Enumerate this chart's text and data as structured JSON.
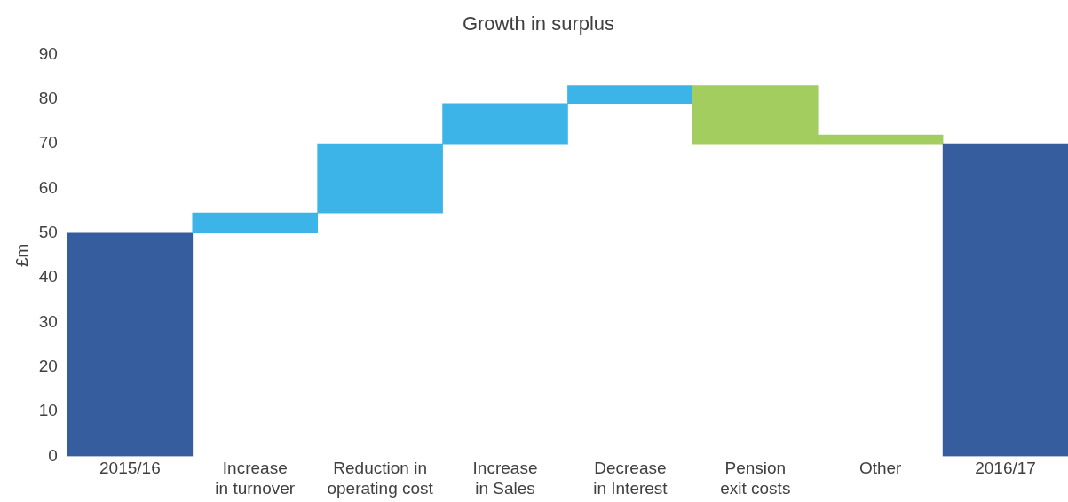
{
  "chart_data": {
    "type": "bar",
    "title": "Growth in surplus",
    "ylabel": "£m",
    "categories": [
      "2015/16",
      "Increase in turnover",
      "Reduction in operating cost",
      "Increase in Sales",
      "Decrease in Interest",
      "Pension exit costs",
      "Other",
      "2016/17"
    ],
    "base": [
      0,
      50,
      54.5,
      70,
      79,
      83,
      70,
      0
    ],
    "values": [
      50,
      4.5,
      15.5,
      9,
      4,
      -13,
      2,
      70
    ],
    "colors": [
      "#365e9f",
      "#3cb4e7",
      "#3cb4e7",
      "#3cb4e7",
      "#3cb4e7",
      "#a3cd5f",
      "#a3cd5f",
      "#365e9f"
    ],
    "ylim": [
      0,
      90
    ],
    "yticks": [
      0,
      10,
      20,
      30,
      40,
      50,
      60,
      70,
      80,
      90
    ],
    "grid": false,
    "legend": false
  }
}
